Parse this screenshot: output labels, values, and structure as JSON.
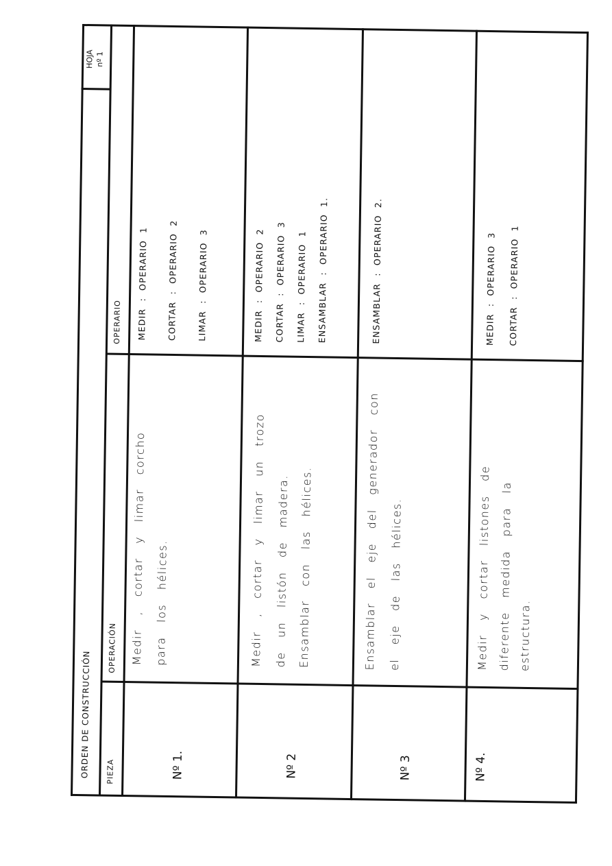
{
  "document": {
    "title": "ORDEN DE CONSTRUCCIÓN",
    "sheet": {
      "label": "HOJA",
      "number": "nº 1"
    },
    "columns": [
      "PIEZA",
      "OPERACIÓN",
      "OPERARIO"
    ],
    "rows": [
      {
        "piece": "Nº 1.",
        "operation": [
          "Medir , cortar y limar corcho",
          "para los hélices."
        ],
        "operators": [
          "MEDIR : OPERARIO 1",
          "CORTAR : OPERARIO 2",
          "LIMAR : OPERARIO 3"
        ]
      },
      {
        "piece": "Nº 2",
        "operation": [
          "Medir , cortar y limar un trozo",
          "de un listón de madera.",
          "Ensamblar con las hélices."
        ],
        "operators": [
          "MEDIR : OPERARIO 2",
          "CORTAR : OPERARIO 3",
          "LIMAR : OPERARIO 1",
          "ENSAMBLAR : OPERARIO 1."
        ]
      },
      {
        "piece": "Nº 3",
        "operation": [
          "Ensamblar el eje del generador con",
          "el eje de las hélices."
        ],
        "operators": [
          "ENSAMBLAR : OPERARIO 2."
        ]
      },
      {
        "piece": "Nº 4.",
        "operation": [
          "Medir y cortar listones de",
          "diferente medida para la",
          "estructura."
        ],
        "operators": [
          "MEDIR : OPERARIO 3",
          "CORTAR : OPERARIO 1"
        ]
      }
    ]
  }
}
